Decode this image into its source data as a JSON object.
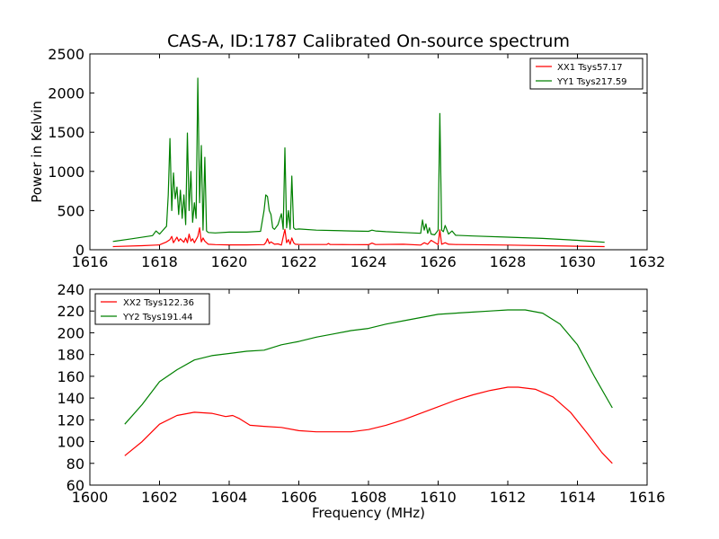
{
  "chart_data": [
    {
      "type": "line",
      "title": "CAS-A, ID:1787 Calibrated On-source spectrum",
      "xlabel": "",
      "ylabel": "Power in Kelvin",
      "xlim": [
        1616,
        1632
      ],
      "ylim": [
        0,
        2500
      ],
      "xticks": [
        "1616",
        "1618",
        "1620",
        "1622",
        "1624",
        "1626",
        "1628",
        "1630",
        "1632"
      ],
      "yticks": [
        "0",
        "500",
        "1000",
        "1500",
        "2000",
        "2500"
      ],
      "legend_position": "top-right",
      "series": [
        {
          "name": "XX1 Tsys57.17",
          "color": "#ff0000",
          "x": [
            1616.66,
            1617.5,
            1617.9,
            1618.0,
            1618.2,
            1618.3,
            1618.35,
            1618.4,
            1618.5,
            1618.55,
            1618.6,
            1618.7,
            1618.75,
            1618.8,
            1618.85,
            1618.9,
            1618.95,
            1619.0,
            1619.1,
            1619.15,
            1619.2,
            1619.25,
            1619.3,
            1619.4,
            1619.6,
            1620.0,
            1620.5,
            1621.0,
            1621.05,
            1621.1,
            1621.15,
            1621.2,
            1621.3,
            1621.4,
            1621.5,
            1621.6,
            1621.65,
            1621.7,
            1621.75,
            1621.8,
            1621.85,
            1621.9,
            1622.0,
            1622.5,
            1622.8,
            1622.85,
            1622.9,
            1623.5,
            1624.0,
            1624.1,
            1624.2,
            1625.0,
            1625.5,
            1625.6,
            1625.7,
            1625.8,
            1626.0,
            1626.05,
            1626.1,
            1626.2,
            1626.3,
            1626.5,
            1628.0,
            1630.0,
            1630.78
          ],
          "y": [
            40,
            52,
            60,
            62,
            100,
            130,
            170,
            90,
            160,
            110,
            140,
            95,
            150,
            90,
            200,
            110,
            140,
            90,
            170,
            280,
            100,
            150,
            110,
            70,
            65,
            62,
            62,
            65,
            90,
            140,
            80,
            100,
            70,
            75,
            60,
            260,
            90,
            130,
            70,
            150,
            90,
            70,
            68,
            66,
            66,
            80,
            66,
            65,
            64,
            85,
            66,
            70,
            60,
            90,
            70,
            120,
            65,
            255,
            70,
            90,
            70,
            66,
            60,
            45,
            40
          ]
        },
        {
          "name": "YY1 Tsys217.59",
          "color": "#008000",
          "x": [
            1616.66,
            1617.2,
            1617.8,
            1617.9,
            1618.0,
            1618.2,
            1618.25,
            1618.3,
            1618.35,
            1618.4,
            1618.45,
            1618.5,
            1618.55,
            1618.6,
            1618.65,
            1618.7,
            1618.75,
            1618.8,
            1618.85,
            1618.9,
            1618.95,
            1619.0,
            1619.05,
            1619.1,
            1619.15,
            1619.2,
            1619.25,
            1619.3,
            1619.35,
            1619.4,
            1619.6,
            1620.0,
            1620.5,
            1620.9,
            1621.0,
            1621.05,
            1621.1,
            1621.15,
            1621.2,
            1621.25,
            1621.3,
            1621.4,
            1621.5,
            1621.55,
            1621.6,
            1621.65,
            1621.7,
            1621.75,
            1621.8,
            1621.85,
            1621.9,
            1622.0,
            1622.5,
            1623.0,
            1623.5,
            1624.0,
            1624.1,
            1624.2,
            1624.5,
            1625.0,
            1625.5,
            1625.55,
            1625.6,
            1625.65,
            1625.7,
            1625.75,
            1625.8,
            1625.9,
            1626.0,
            1626.05,
            1626.1,
            1626.15,
            1626.2,
            1626.3,
            1626.4,
            1626.5,
            1627.0,
            1628.0,
            1629.0,
            1630.0,
            1630.78
          ],
          "y": [
            105,
            140,
            180,
            240,
            200,
            300,
            700,
            1420,
            500,
            980,
            650,
            800,
            450,
            760,
            400,
            700,
            320,
            1490,
            500,
            1000,
            350,
            600,
            400,
            2190,
            600,
            1330,
            250,
            1180,
            240,
            220,
            215,
            225,
            225,
            235,
            500,
            700,
            680,
            500,
            450,
            280,
            260,
            320,
            460,
            260,
            1300,
            280,
            500,
            260,
            940,
            280,
            260,
            265,
            250,
            245,
            240,
            235,
            250,
            240,
            230,
            220,
            210,
            380,
            250,
            330,
            210,
            280,
            200,
            190,
            250,
            1740,
            250,
            230,
            310,
            200,
            240,
            185,
            175,
            160,
            145,
            120,
            95
          ]
        }
      ]
    },
    {
      "type": "line",
      "title": "",
      "xlabel": "Frequency (MHz)",
      "ylabel": "",
      "xlim": [
        1600,
        1616
      ],
      "ylim": [
        60,
        240
      ],
      "xticks": [
        "1600",
        "1602",
        "1604",
        "1606",
        "1608",
        "1610",
        "1612",
        "1614",
        "1616"
      ],
      "yticks": [
        "60",
        "80",
        "100",
        "120",
        "140",
        "160",
        "180",
        "200",
        "220",
        "240"
      ],
      "legend_position": "top-left",
      "series": [
        {
          "name": "XX2 Tsys122.36",
          "color": "#ff0000",
          "x": [
            1601.0,
            1601.5,
            1602.0,
            1602.5,
            1603.0,
            1603.5,
            1603.9,
            1604.1,
            1604.3,
            1604.6,
            1605.0,
            1605.5,
            1606.0,
            1606.5,
            1607.0,
            1607.5,
            1608.0,
            1608.5,
            1609.0,
            1609.5,
            1610.0,
            1610.5,
            1611.0,
            1611.5,
            1612.0,
            1612.3,
            1612.8,
            1613.3,
            1613.8,
            1614.3,
            1614.7,
            1615.0
          ],
          "y": [
            87,
            100,
            116,
            124,
            127,
            126,
            123,
            124,
            121,
            115,
            114,
            113,
            110,
            109,
            109,
            109,
            111,
            115,
            120,
            126,
            132,
            138,
            143,
            147,
            150,
            150,
            148,
            141,
            127,
            107,
            90,
            80
          ]
        },
        {
          "name": "YY2 Tsys191.44",
          "color": "#008000",
          "x": [
            1601.0,
            1601.5,
            1602.0,
            1602.5,
            1603.0,
            1603.5,
            1604.0,
            1604.5,
            1605.0,
            1605.5,
            1606.0,
            1606.5,
            1607.0,
            1607.5,
            1608.0,
            1608.5,
            1609.0,
            1609.5,
            1610.0,
            1610.5,
            1611.0,
            1611.5,
            1612.0,
            1612.5,
            1613.0,
            1613.5,
            1614.0,
            1614.5,
            1615.0
          ],
          "y": [
            116,
            134,
            155,
            166,
            175,
            179,
            181,
            183,
            184,
            189,
            192,
            196,
            199,
            202,
            204,
            208,
            211,
            214,
            217,
            218,
            219,
            220,
            221,
            221,
            218,
            208,
            189,
            159,
            131
          ]
        }
      ]
    }
  ]
}
